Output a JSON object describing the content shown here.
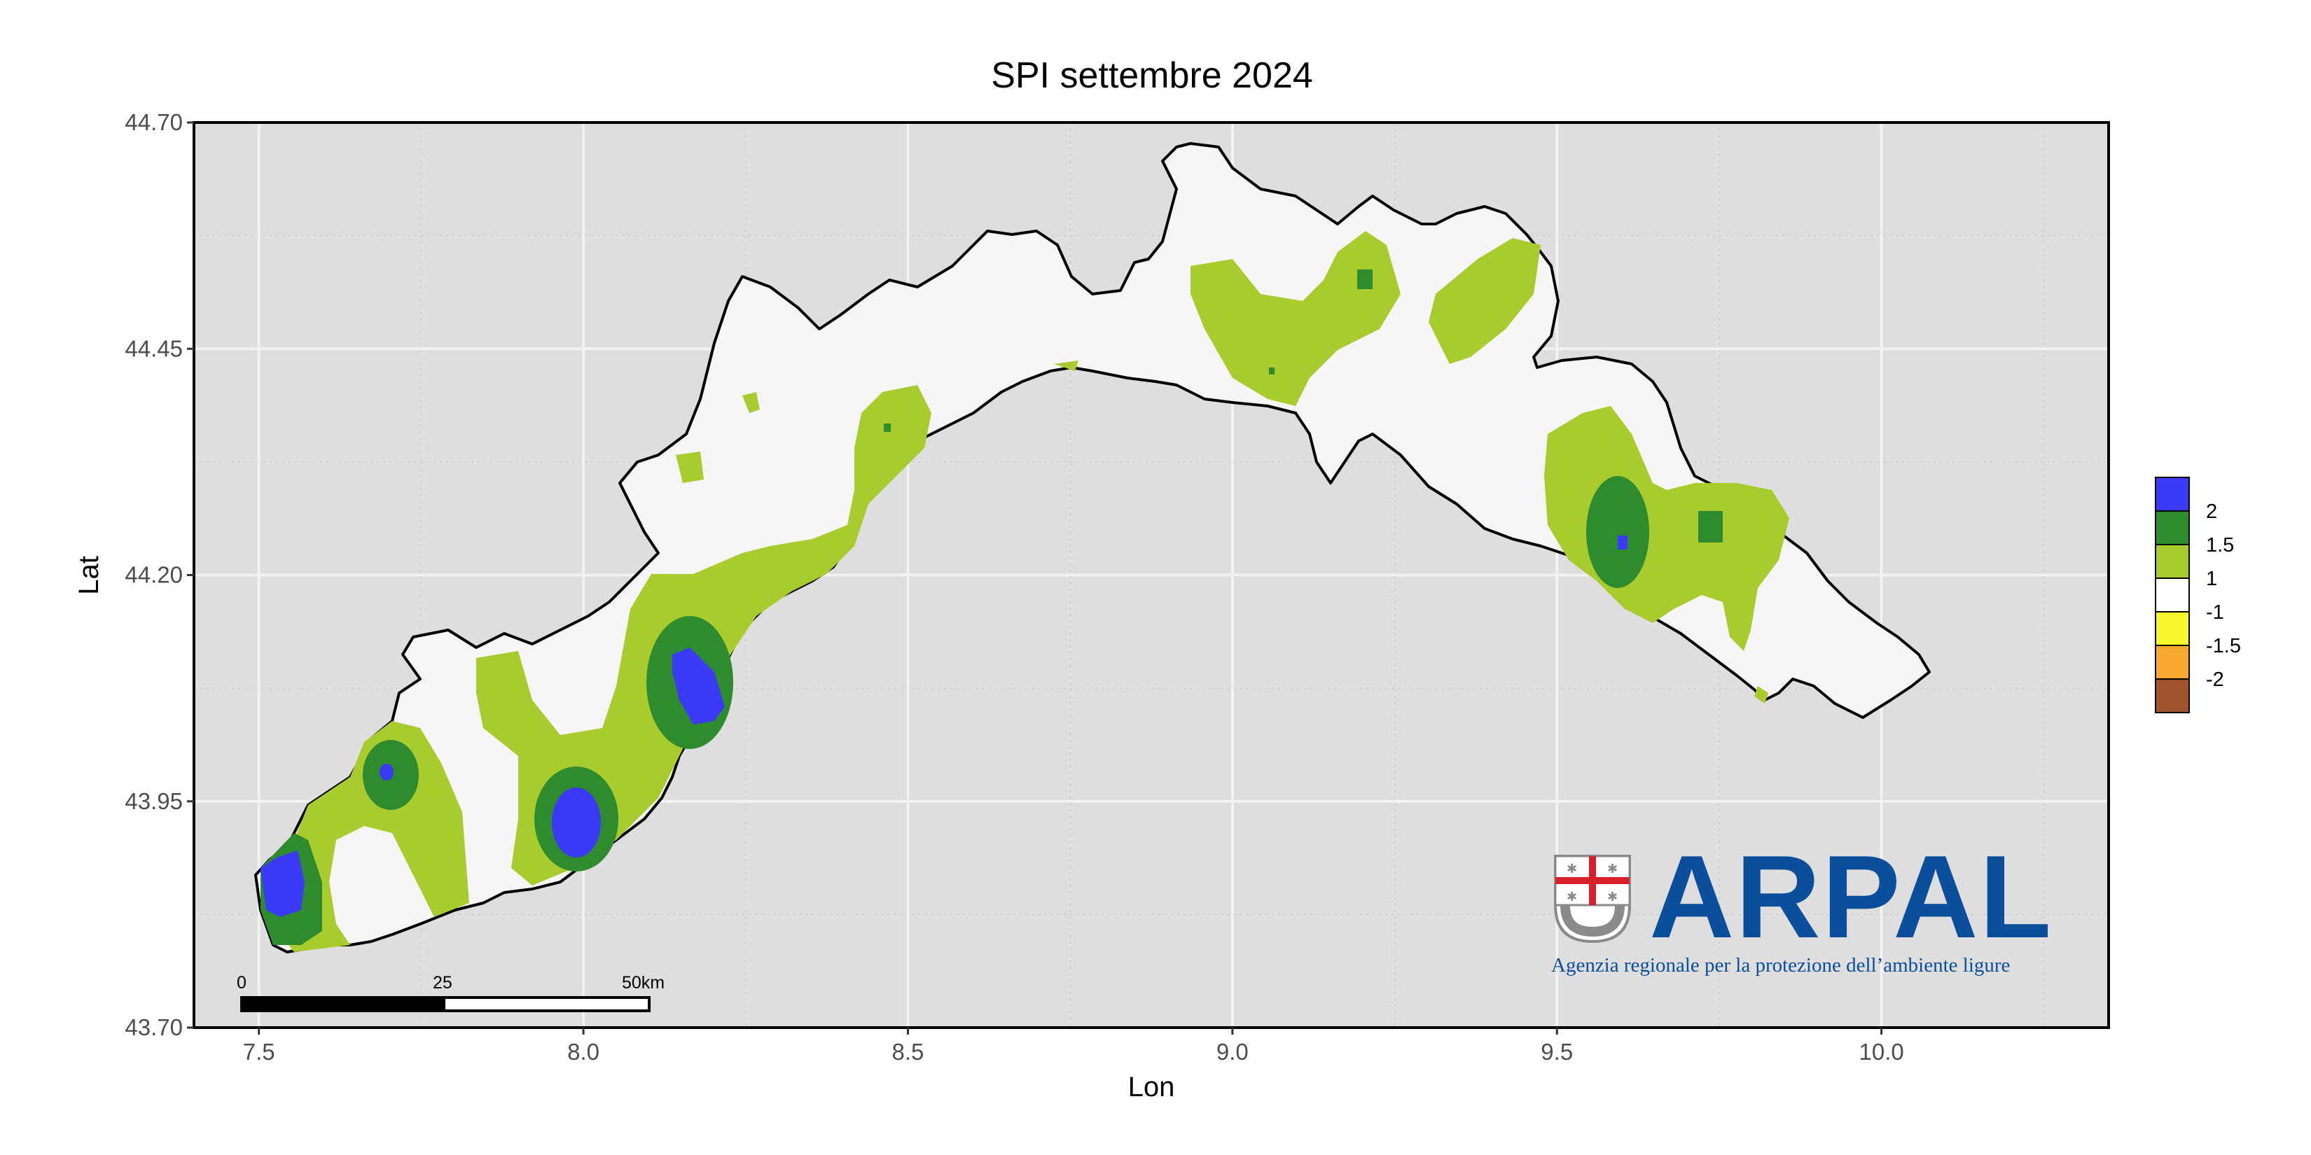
{
  "title": "SPI settembre 2024",
  "axes": {
    "x": {
      "label": "Lon",
      "ticks": [
        "7.5",
        "8.0",
        "8.5",
        "9.0",
        "9.5",
        "10.0"
      ],
      "values": [
        7.5,
        8.0,
        8.5,
        9.0,
        9.5,
        10.0
      ],
      "range": [
        7.4,
        10.35
      ]
    },
    "y": {
      "label": "Lat",
      "ticks": [
        "43.70",
        "43.95",
        "44.20",
        "44.45",
        "44.70"
      ],
      "values": [
        43.7,
        43.95,
        44.2,
        44.45,
        44.7
      ],
      "range": [
        43.7,
        44.7
      ]
    }
  },
  "legend": {
    "items": [
      {
        "label": "2",
        "color": "#3a3af7"
      },
      {
        "label": "1.5",
        "color": "#2e8b2e"
      },
      {
        "label": "1",
        "color": "#a8cc2e"
      },
      {
        "label": "-1",
        "color": "#ffffff"
      },
      {
        "label": "-1.5",
        "color": "#f7f72e"
      },
      {
        "label": "-2",
        "color": "#f7a82e"
      },
      {
        "label": "",
        "color": "#a0522d"
      }
    ]
  },
  "scale_bar": {
    "labels": [
      "0",
      "25",
      "50km"
    ]
  },
  "logo": {
    "name": "ARPAL",
    "tagline": "Agenzia regionale per la protezione dell’ambiente ligure"
  },
  "colors": {
    "panel": "#dedede",
    "land": "#f6f6f6",
    "very_wet": "#3a3af7",
    "wet": "#2e8b2e",
    "mod_wet": "#a8cc2e",
    "border": "#000000",
    "brand": "#0b4f9c"
  }
}
